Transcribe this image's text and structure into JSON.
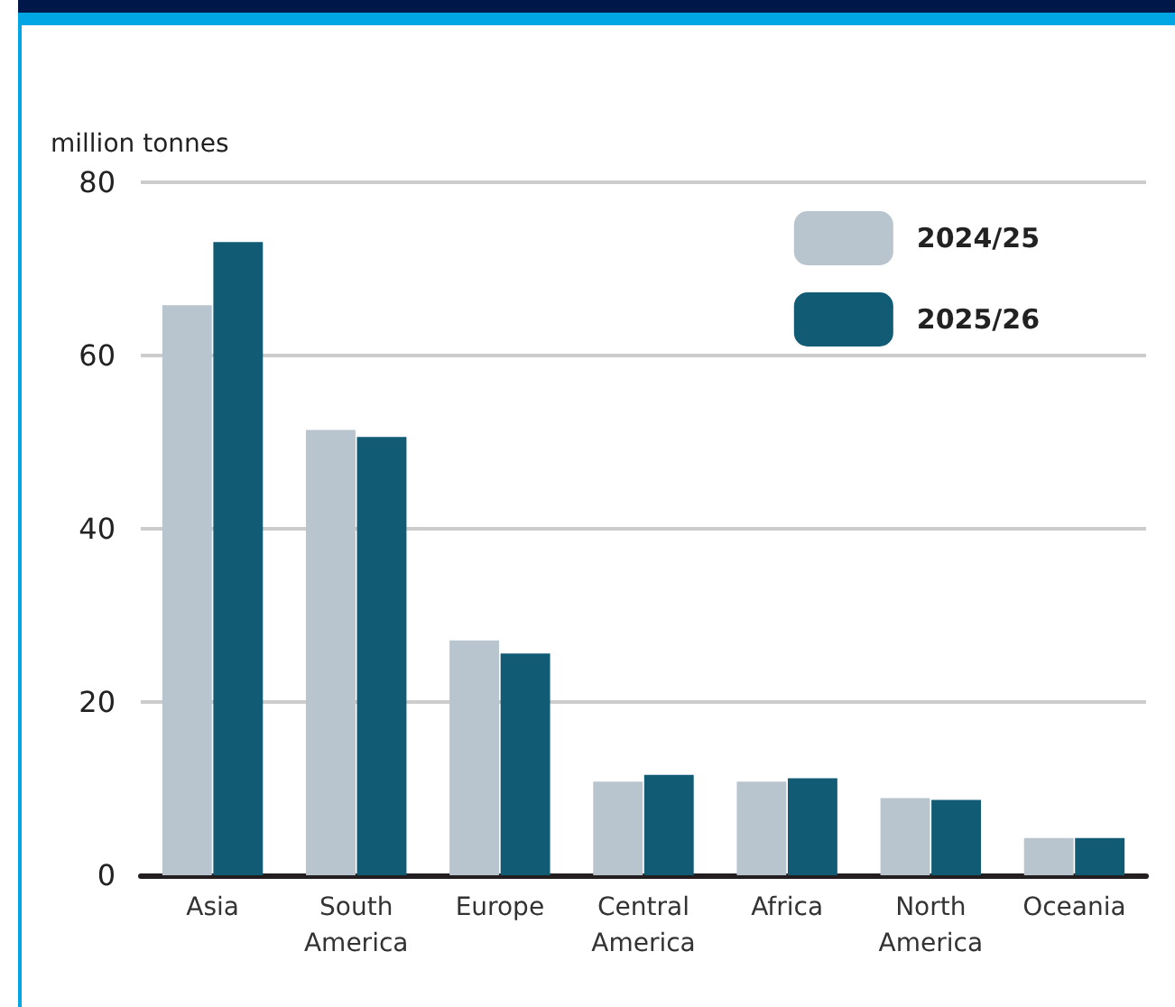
{
  "chart_data": {
    "type": "bar",
    "ylabel": "million tonnes",
    "categories": [
      "Asia",
      "South\nAmerica",
      "Europe",
      "Central\nAmerica",
      "Africa",
      "North\nAmerica",
      "Oceania"
    ],
    "series": [
      {
        "name": "2024/25",
        "color": "#b8c5ce",
        "values": [
          65.8,
          51.4,
          27.1,
          10.8,
          10.8,
          8.9,
          4.3
        ]
      },
      {
        "name": "2025/26",
        "color": "#115b74",
        "values": [
          73.1,
          50.6,
          25.6,
          11.6,
          11.2,
          8.7,
          4.3
        ]
      }
    ],
    "ylim": [
      0,
      80
    ],
    "yticks": [
      0,
      20,
      40,
      60,
      80
    ],
    "grid": "y",
    "legend": "top right"
  }
}
